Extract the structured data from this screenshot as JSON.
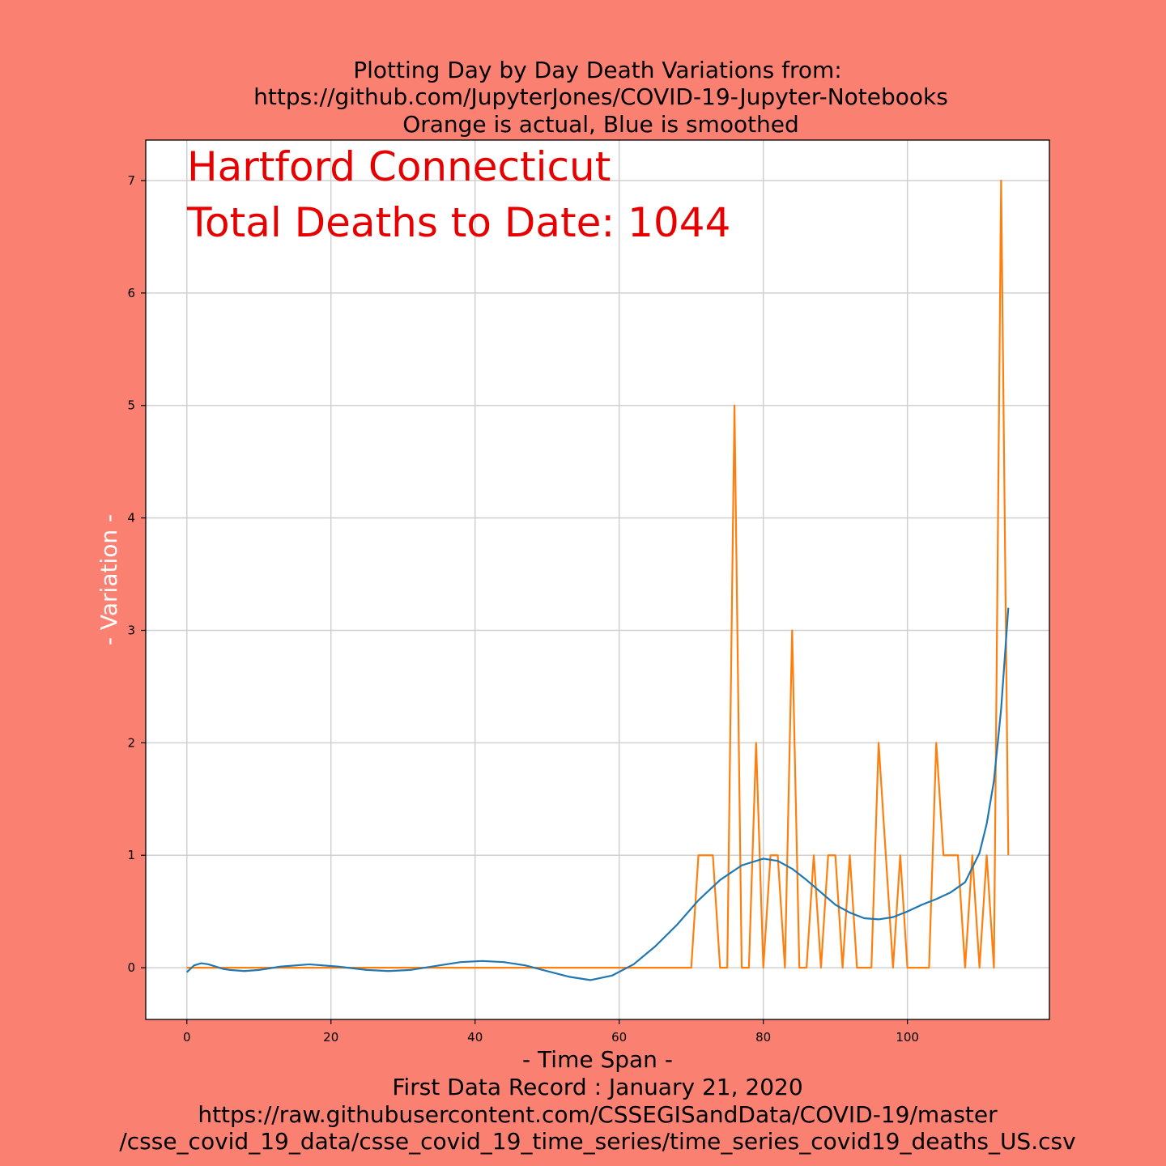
{
  "chart_data": {
    "type": "line",
    "title_lines": [
      "Plotting Day by Day Death Variations from:",
      "https://github.com/JupyterJones/COVID-19-Jupyter-Notebooks",
      "Orange is actual, Blue is smoothed"
    ],
    "xlabel_lines": [
      "- Time Span -",
      "First Data Record : January 21, 2020",
      "https://raw.githubusercontent.com/CSSEGISandData/COVID-19/master",
      "/csse_covid_19_data/csse_covid_19_time_series/time_series_covid19_deaths_US.csv"
    ],
    "ylabel": "- Variation -",
    "annotations": [
      "Hartford Connecticut",
      "Total Deaths to Date: 1044"
    ],
    "xlim": [
      -5.7,
      119.7
    ],
    "ylim": [
      -0.46,
      7.36
    ],
    "xticks": [
      0,
      20,
      40,
      60,
      80,
      100
    ],
    "yticks": [
      0,
      1,
      2,
      3,
      4,
      5,
      6,
      7
    ],
    "grid": true,
    "colors": {
      "actual": "#ff7f0e",
      "smoothed": "#1f77b4",
      "annotation": "#e60000",
      "background": "#fa8072"
    },
    "series": [
      {
        "key": "actual",
        "x": [
          0,
          1,
          2,
          3,
          4,
          5,
          6,
          7,
          8,
          9,
          10,
          11,
          12,
          13,
          14,
          15,
          16,
          17,
          18,
          19,
          20,
          21,
          22,
          23,
          24,
          25,
          26,
          27,
          28,
          29,
          30,
          31,
          32,
          33,
          34,
          35,
          36,
          37,
          38,
          39,
          40,
          41,
          42,
          43,
          44,
          45,
          46,
          47,
          48,
          49,
          50,
          51,
          52,
          53,
          54,
          55,
          56,
          57,
          58,
          59,
          60,
          61,
          62,
          63,
          64,
          65,
          66,
          67,
          68,
          69,
          70,
          71,
          72,
          73,
          74,
          75,
          76,
          77,
          78,
          79,
          80,
          81,
          82,
          83,
          84,
          85,
          86,
          87,
          88,
          89,
          90,
          91,
          92,
          93,
          94,
          95,
          96,
          97,
          98,
          99,
          100,
          101,
          102,
          103,
          104,
          105,
          106,
          107,
          108,
          109,
          110,
          111,
          112,
          113,
          114
        ],
        "y": [
          0,
          0,
          0,
          0,
          0,
          0,
          0,
          0,
          0,
          0,
          0,
          0,
          0,
          0,
          0,
          0,
          0,
          0,
          0,
          0,
          0,
          0,
          0,
          0,
          0,
          0,
          0,
          0,
          0,
          0,
          0,
          0,
          0,
          0,
          0,
          0,
          0,
          0,
          0,
          0,
          0,
          0,
          0,
          0,
          0,
          0,
          0,
          0,
          0,
          0,
          0,
          0,
          0,
          0,
          0,
          0,
          0,
          0,
          0,
          0,
          0,
          0,
          0,
          0,
          0,
          0,
          0,
          0,
          0,
          0,
          0,
          1,
          1,
          1,
          0,
          0,
          5,
          0,
          0,
          2,
          0,
          1,
          1,
          0,
          3,
          0,
          0,
          1,
          0,
          1,
          1,
          0,
          1,
          0,
          0,
          0,
          2,
          1,
          0,
          1,
          0,
          0,
          0,
          0,
          2,
          1,
          1,
          1,
          0,
          1,
          0,
          1,
          0,
          7,
          1
        ]
      },
      {
        "key": "smoothed",
        "x": [
          0,
          1,
          2,
          3,
          4,
          5,
          6,
          8,
          10,
          13,
          17,
          21,
          25,
          28,
          31,
          35,
          38,
          41,
          44,
          47,
          50,
          53,
          56,
          59,
          62,
          65,
          68,
          71,
          74,
          77,
          80,
          82,
          84,
          86,
          88,
          90,
          92,
          94,
          96,
          98,
          100,
          102,
          104,
          106,
          108,
          110,
          111,
          112,
          113,
          114
        ],
        "y": [
          -0.04,
          0.02,
          0.04,
          0.03,
          0.01,
          -0.01,
          -0.02,
          -0.03,
          -0.02,
          0.01,
          0.03,
          0.01,
          -0.02,
          -0.03,
          -0.02,
          0.02,
          0.05,
          0.06,
          0.05,
          0.02,
          -0.03,
          -0.08,
          -0.11,
          -0.07,
          0.03,
          0.19,
          0.38,
          0.6,
          0.78,
          0.91,
          0.97,
          0.95,
          0.88,
          0.78,
          0.67,
          0.56,
          0.49,
          0.44,
          0.43,
          0.45,
          0.5,
          0.56,
          0.61,
          0.67,
          0.76,
          1.02,
          1.28,
          1.66,
          2.3,
          3.2
        ]
      }
    ]
  }
}
